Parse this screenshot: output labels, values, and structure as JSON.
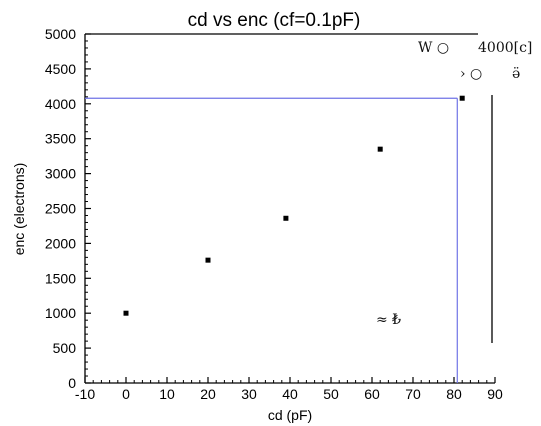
{
  "chart_data": {
    "type": "scatter",
    "title": "cd vs enc (cf=0.1pF)",
    "xlabel": "cd (pF)",
    "ylabel": "enc (electrons)",
    "xlim": [
      -10,
      90
    ],
    "ylim": [
      0,
      5000
    ],
    "xticks": [
      "-10",
      "0",
      "10",
      "20",
      "30",
      "40",
      "50",
      "60",
      "70",
      "80",
      "90"
    ],
    "yticks": [
      "0",
      "500",
      "1000",
      "1500",
      "2000",
      "2500",
      "3000",
      "3500",
      "4000",
      "4500",
      "5000"
    ],
    "points": [
      {
        "x": 0,
        "y": 1000
      },
      {
        "x": 20,
        "y": 1760
      },
      {
        "x": 39,
        "y": 2360
      },
      {
        "x": 62,
        "y": 3350
      },
      {
        "x": 82,
        "y": 4080
      }
    ],
    "crosshair": {
      "x": 80.8,
      "y": 4080
    },
    "grid": false,
    "point_color": "#000000",
    "crosshair_color": "#6f73e6",
    "scan_artifacts": {
      "top_left_marks": "W  ○",
      "top_value": "4000[c]",
      "second_row_marks": "›  ○",
      "second_row_value": "ӛ",
      "lower_marks": "≈   ₺"
    }
  }
}
